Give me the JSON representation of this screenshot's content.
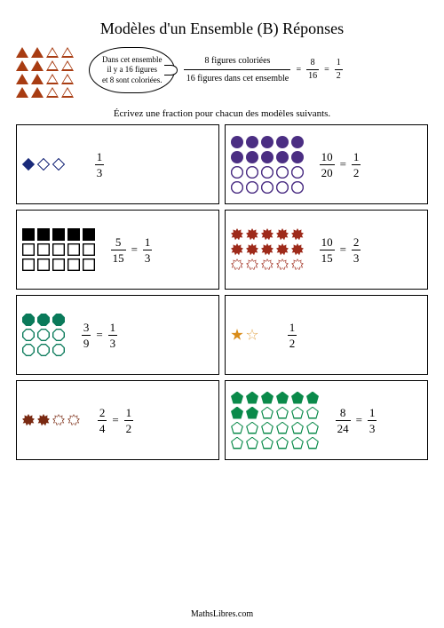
{
  "title": "Modèles d'un Ensemble (B) Réponses",
  "instruction": "Écrivez une fraction pour chacun des modèles suivants.",
  "footer": "MathsLibres.com",
  "intro": {
    "shape": "triangle",
    "color": "#a83c12",
    "rows": 4,
    "cols": 4,
    "filled": 8,
    "total": 16,
    "bubble_lines": [
      "Dans cet ensemble",
      "il y a 16 figures",
      "et 8 sont coloriées."
    ],
    "explain_top": "8 figures coloriées",
    "explain_bottom": "16 figures dans cet ensemble",
    "frac1_n": "8",
    "frac1_d": "16",
    "frac2_n": "1",
    "frac2_d": "2"
  },
  "cards": [
    {
      "shape": "diamond",
      "color": "#1a2a7a",
      "filled": 1,
      "total": 3,
      "cols": 3,
      "ans": [
        {
          "n": "1",
          "d": "3"
        }
      ]
    },
    {
      "shape": "circle",
      "color": "#4b2e83",
      "filled": 10,
      "total": 20,
      "cols": 5,
      "ans": [
        {
          "n": "10",
          "d": "20"
        },
        {
          "n": "1",
          "d": "2"
        }
      ]
    },
    {
      "shape": "square",
      "color": "#000000",
      "filled": 5,
      "total": 15,
      "cols": 5,
      "ans": [
        {
          "n": "5",
          "d": "15"
        },
        {
          "n": "1",
          "d": "3"
        }
      ]
    },
    {
      "shape": "burst",
      "color": "#9e2a1a",
      "filled": 10,
      "total": 15,
      "cols": 5,
      "ans": [
        {
          "n": "10",
          "d": "15"
        },
        {
          "n": "2",
          "d": "3"
        }
      ]
    },
    {
      "shape": "octagon",
      "color": "#0a7a5a",
      "filled": 3,
      "total": 9,
      "cols": 3,
      "ans": [
        {
          "n": "3",
          "d": "9"
        },
        {
          "n": "1",
          "d": "3"
        }
      ]
    },
    {
      "shape": "star",
      "color": "#d98c1a",
      "filled": 1,
      "total": 2,
      "cols": 2,
      "ans": [
        {
          "n": "1",
          "d": "2"
        }
      ]
    },
    {
      "shape": "burst",
      "color": "#7a2a12",
      "filled": 2,
      "total": 4,
      "cols": 4,
      "ans": [
        {
          "n": "2",
          "d": "4"
        },
        {
          "n": "1",
          "d": "2"
        }
      ]
    },
    {
      "shape": "pentagon",
      "color": "#0a8a4a",
      "filled": 8,
      "total": 24,
      "cols": 6,
      "ans": [
        {
          "n": "8",
          "d": "24"
        },
        {
          "n": "1",
          "d": "3"
        }
      ]
    }
  ]
}
